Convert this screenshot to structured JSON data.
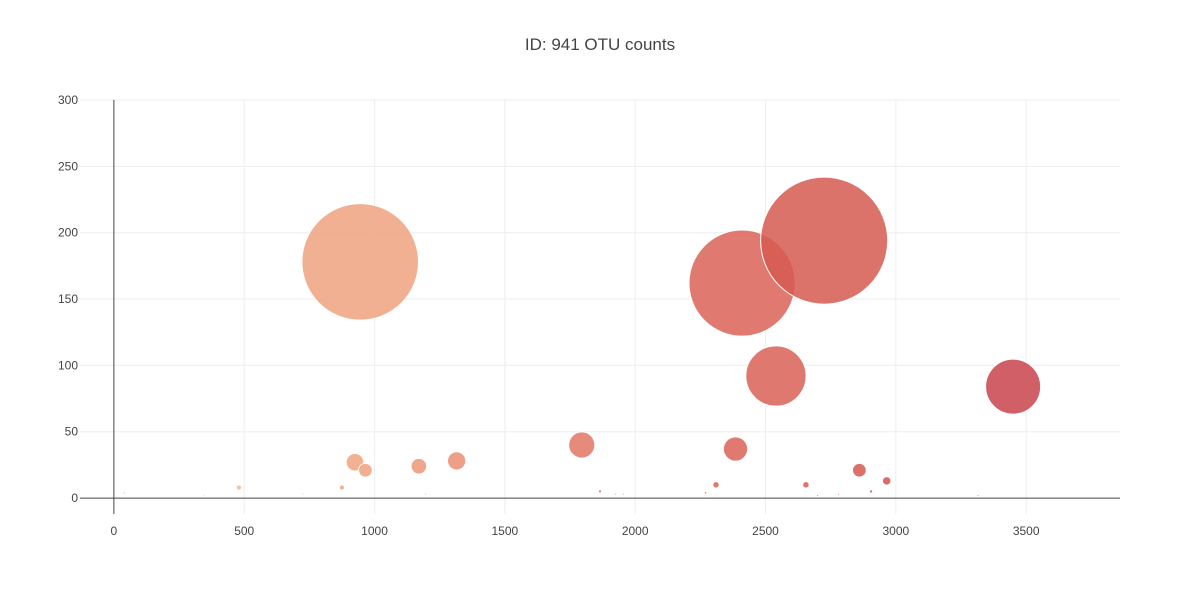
{
  "chart_data": {
    "type": "scatter",
    "subtype": "bubble",
    "title": "ID: 941 OTU counts",
    "xlabel": "",
    "ylabel": "",
    "xlim": [
      -130,
      3860
    ],
    "ylim": [
      -12,
      300
    ],
    "x_ticks": [
      0,
      500,
      1000,
      1500,
      2000,
      2500,
      3000,
      3500
    ],
    "y_ticks": [
      0,
      50,
      100,
      150,
      200,
      250,
      300
    ],
    "grid": true,
    "legend": "none",
    "marker_size_mode": "diameter",
    "size_scale": 0.655,
    "color_scale": {
      "name": "Reds-like",
      "stops": [
        "#f6c9a7",
        "#f0a27f",
        "#e06f61",
        "#d5584f",
        "#c0374a"
      ],
      "domain": [
        0,
        3800
      ]
    },
    "marker_opacity": 0.85,
    "series": [
      {
        "points": [
          {
            "x": 40,
            "y": 4
          },
          {
            "x": 345,
            "y": 2
          },
          {
            "x": 480,
            "y": 8
          },
          {
            "x": 725,
            "y": 3
          },
          {
            "x": 875,
            "y": 8
          },
          {
            "x": 925,
            "y": 27
          },
          {
            "x": 945,
            "y": 178
          },
          {
            "x": 965,
            "y": 21
          },
          {
            "x": 1170,
            "y": 24
          },
          {
            "x": 1195,
            "y": 3
          },
          {
            "x": 1315,
            "y": 28
          },
          {
            "x": 1795,
            "y": 40
          },
          {
            "x": 1865,
            "y": 5
          },
          {
            "x": 1925,
            "y": 3
          },
          {
            "x": 1955,
            "y": 3
          },
          {
            "x": 2270,
            "y": 4
          },
          {
            "x": 2310,
            "y": 10
          },
          {
            "x": 2385,
            "y": 37
          },
          {
            "x": 2410,
            "y": 162
          },
          {
            "x": 2540,
            "y": 92
          },
          {
            "x": 2655,
            "y": 10
          },
          {
            "x": 2700,
            "y": 2
          },
          {
            "x": 2725,
            "y": 194
          },
          {
            "x": 2780,
            "y": 3
          },
          {
            "x": 2860,
            "y": 21
          },
          {
            "x": 2905,
            "y": 5
          },
          {
            "x": 2965,
            "y": 13
          },
          {
            "x": 3315,
            "y": 2
          },
          {
            "x": 3450,
            "y": 84
          }
        ]
      }
    ]
  }
}
